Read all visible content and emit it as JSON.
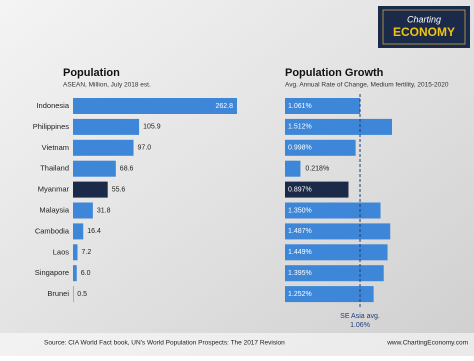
{
  "chart_data": [
    {
      "type": "bar",
      "orientation": "horizontal",
      "title": "Population",
      "subtitle": "ASEAN, Million, July 2018 est.",
      "categories": [
        "Indonesia",
        "Philippines",
        "Vietnam",
        "Thailand",
        "Myanmar",
        "Malaysia",
        "Cambodia",
        "Laos",
        "Singapore",
        "Brunei"
      ],
      "values": [
        262.8,
        105.9,
        97.0,
        68.6,
        55.6,
        31.8,
        16.4,
        7.2,
        6.0,
        0.5
      ],
      "value_labels": [
        "262.8",
        "105.9",
        "97.0",
        "68.6",
        "55.6",
        "31.8",
        "16.4",
        "7.2",
        "6.0",
        "0.5"
      ],
      "color": "#3d86d8",
      "highlight_color": "#1c2a4a",
      "highlight_category": "Myanmar"
    },
    {
      "type": "bar",
      "orientation": "horizontal",
      "title": "Population Growth",
      "subtitle": "Avg. Annual Rate of Change, Medium fertility, 2015-2020",
      "categories": [
        "Indonesia",
        "Philippines",
        "Vietnam",
        "Thailand",
        "Myanmar",
        "Malaysia",
        "Cambodia",
        "Laos",
        "Singapore",
        "Brunei"
      ],
      "values": [
        1.061,
        1.512,
        0.998,
        0.218,
        0.897,
        1.35,
        1.487,
        1.449,
        1.395,
        1.252
      ],
      "value_labels": [
        "1.061%",
        "1.512%",
        "0.998%",
        "0.218%",
        "0.897%",
        "1.350%",
        "1.487%",
        "1.449%",
        "1.395%",
        "1.252%"
      ],
      "color": "#3d86d8",
      "highlight_color": "#1c2a4a",
      "highlight_category": "Myanmar",
      "reference_line": {
        "label": "SE Asia avg.",
        "value": 1.06,
        "value_label": "1.06%",
        "color": "#1c3f7a"
      }
    }
  ],
  "logo": {
    "line1": "Charting",
    "line2": "ECONOMY"
  },
  "footer": {
    "source": "Source: CIA World Fact book, UN's World Population Prospects: The 2017 Revision",
    "website": "www.ChartingEconomy.com"
  }
}
